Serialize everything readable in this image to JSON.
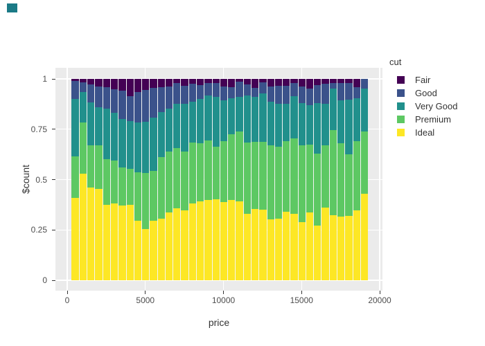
{
  "corner_mark": {
    "color": "#1b7a86"
  },
  "panel": {
    "background": "#ebebeb",
    "grid_color": "#ffffff"
  },
  "x_axis": {
    "title": "price",
    "tick_labels": [
      "0",
      "5000",
      "10000",
      "15000",
      "20000"
    ],
    "tick_values": [
      0,
      5000,
      10000,
      15000,
      20000
    ]
  },
  "y_axis": {
    "title": "$count",
    "tick_labels": [
      "0",
      "0.25",
      "0.5",
      "0.75",
      "1"
    ],
    "tick_values": [
      0,
      0.25,
      0.5,
      0.75,
      1
    ]
  },
  "legend": {
    "title": "cut",
    "items": [
      {
        "label": "Fair",
        "color": "#440154"
      },
      {
        "label": "Good",
        "color": "#3b528b"
      },
      {
        "label": "Very Good",
        "color": "#21908c"
      },
      {
        "label": "Premium",
        "color": "#5dc863"
      },
      {
        "label": "Ideal",
        "color": "#fde725"
      }
    ]
  },
  "chart_data": {
    "type": "bar",
    "subtype": "normalized_stacked_histogram",
    "title": "",
    "xlabel": "price",
    "ylabel": "$count",
    "xlim": [
      -750,
      20200
    ],
    "ylim": [
      -0.055,
      1.055
    ],
    "x_ticks": [
      0,
      5000,
      10000,
      15000,
      20000
    ],
    "y_ticks": [
      0,
      0.25,
      0.5,
      0.75,
      1
    ],
    "grid": "major gridlines only, white on gray panel",
    "legend_position": "right",
    "bin_width": 500,
    "first_bin_start": 250,
    "n_bins": 38,
    "stack_order_bottom_to_top": [
      "Ideal",
      "Premium",
      "Very Good",
      "Good",
      "Fair"
    ],
    "series": [
      {
        "name": "Ideal",
        "color": "#fde725",
        "values": [
          0.41,
          0.53,
          0.46,
          0.454,
          0.376,
          0.381,
          0.37,
          0.376,
          0.295,
          0.255,
          0.295,
          0.307,
          0.338,
          0.359,
          0.347,
          0.382,
          0.391,
          0.399,
          0.401,
          0.387,
          0.399,
          0.393,
          0.33,
          0.353,
          0.349,
          0.301,
          0.307,
          0.341,
          0.33,
          0.29,
          0.336,
          0.272,
          0.359,
          0.324,
          0.315,
          0.318,
          0.347,
          0.428
        ]
      },
      {
        "name": "Premium",
        "color": "#5dc863",
        "values": [
          0.205,
          0.255,
          0.21,
          0.215,
          0.227,
          0.213,
          0.19,
          0.178,
          0.242,
          0.276,
          0.248,
          0.304,
          0.302,
          0.298,
          0.293,
          0.301,
          0.289,
          0.295,
          0.262,
          0.305,
          0.327,
          0.345,
          0.353,
          0.333,
          0.337,
          0.368,
          0.356,
          0.351,
          0.373,
          0.381,
          0.339,
          0.357,
          0.312,
          0.42,
          0.365,
          0.307,
          0.345,
          0.31
        ]
      },
      {
        "name": "Very Good",
        "color": "#21908c",
        "values": [
          0.285,
          0.15,
          0.212,
          0.19,
          0.25,
          0.236,
          0.241,
          0.236,
          0.247,
          0.255,
          0.264,
          0.224,
          0.213,
          0.219,
          0.236,
          0.204,
          0.219,
          0.222,
          0.247,
          0.201,
          0.179,
          0.172,
          0.233,
          0.224,
          0.242,
          0.218,
          0.213,
          0.184,
          0.21,
          0.207,
          0.195,
          0.249,
          0.205,
          0.207,
          0.213,
          0.272,
          0.213,
          0.213
        ]
      },
      {
        "name": "Good",
        "color": "#3b528b",
        "values": [
          0.09,
          0.048,
          0.092,
          0.103,
          0.106,
          0.12,
          0.142,
          0.123,
          0.152,
          0.159,
          0.149,
          0.124,
          0.109,
          0.103,
          0.09,
          0.09,
          0.071,
          0.063,
          0.071,
          0.069,
          0.054,
          0.075,
          0.058,
          0.046,
          0.054,
          0.075,
          0.09,
          0.09,
          0.068,
          0.084,
          0.081,
          0.092,
          0.101,
          0.03,
          0.086,
          0.084,
          0.054,
          0.049
        ]
      },
      {
        "name": "Fair",
        "color": "#440154",
        "values": [
          0.01,
          0.017,
          0.026,
          0.038,
          0.041,
          0.05,
          0.057,
          0.087,
          0.064,
          0.055,
          0.044,
          0.041,
          0.038,
          0.021,
          0.034,
          0.023,
          0.03,
          0.021,
          0.019,
          0.038,
          0.041,
          0.015,
          0.026,
          0.044,
          0.018,
          0.038,
          0.034,
          0.034,
          0.019,
          0.038,
          0.049,
          0.03,
          0.023,
          0.019,
          0.021,
          0.019,
          0.041,
          0.0
        ]
      }
    ]
  }
}
